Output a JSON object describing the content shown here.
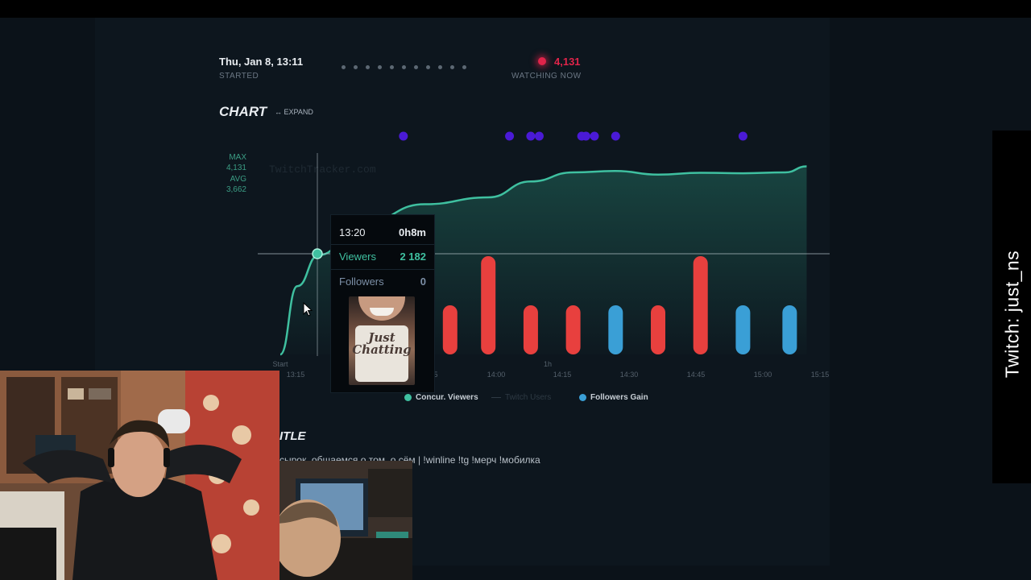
{
  "stream": {
    "started_value": "Thu, Jan 8, 13:11",
    "started_label": "STARTED",
    "watching_value": "4,131",
    "watching_label": "WATCHING NOW"
  },
  "chart_section": {
    "title": "CHART",
    "expand_label": "↔ EXPAND",
    "watermark": "TwitchTracker.com",
    "stats": {
      "max_label": "MAX",
      "max_value": "4,131",
      "avg_label": "AVG",
      "avg_value": "3,662"
    }
  },
  "tooltip": {
    "time": "13:20",
    "duration": "0h8m",
    "viewers_label": "Viewers",
    "viewers_value": "2 182",
    "followers_label": "Followers",
    "followers_value": "0",
    "thumbnail_text": "Just Chatting"
  },
  "legend": {
    "viewers": "Concur. Viewers",
    "twitch_users": "Twitch Users",
    "followers": "Followers Gain"
  },
  "title_section": {
    "heading": "ITLE",
    "text": "сырок, общаемся о том, о сём | !winline !tg !мерч !мобилка"
  },
  "side_banner": {
    "text": "Twitch: just_ns"
  },
  "colors": {
    "viewers": "#3fc0a0",
    "followers_positive": "#e8403e",
    "followers_other": "#3a9fd6",
    "live": "#e0244a",
    "marker": "#4a1ad6"
  },
  "chart_data": {
    "type": "line",
    "x_tick_labels": [
      "Start",
      "13:15",
      "5",
      "14:00",
      "1h",
      "14:15",
      "14:30",
      "14:45",
      "15:00",
      "15:15"
    ],
    "viewers": {
      "name": "Concur. Viewers",
      "points": [
        {
          "t": "13:11",
          "v": 0
        },
        {
          "t": "13:15",
          "v": 1500
        },
        {
          "t": "13:20",
          "v": 2182
        },
        {
          "t": "13:30",
          "v": 2850
        },
        {
          "t": "13:45",
          "v": 3300
        },
        {
          "t": "14:00",
          "v": 3450
        },
        {
          "t": "14:10",
          "v": 3800
        },
        {
          "t": "14:20",
          "v": 4000
        },
        {
          "t": "14:30",
          "v": 4030
        },
        {
          "t": "14:40",
          "v": 3950
        },
        {
          "t": "14:50",
          "v": 3990
        },
        {
          "t": "15:00",
          "v": 3980
        },
        {
          "t": "15:10",
          "v": 4000
        },
        {
          "t": "15:15",
          "v": 4131
        }
      ]
    },
    "followers_gain": {
      "name": "Followers Gain",
      "bars": [
        {
          "t": "13:51",
          "v": 1,
          "kind": "red"
        },
        {
          "t": "14:00",
          "v": 2,
          "kind": "red"
        },
        {
          "t": "14:10",
          "v": 1,
          "kind": "red"
        },
        {
          "t": "14:20",
          "v": 1,
          "kind": "red"
        },
        {
          "t": "14:30",
          "v": 1,
          "kind": "blue"
        },
        {
          "t": "14:40",
          "v": 1,
          "kind": "red"
        },
        {
          "t": "14:50",
          "v": 2,
          "kind": "red"
        },
        {
          "t": "15:00",
          "v": 1,
          "kind": "blue"
        },
        {
          "t": "15:11",
          "v": 1,
          "kind": "blue"
        }
      ]
    },
    "markers": [
      "13:40",
      "14:05",
      "14:10",
      "14:12",
      "14:22",
      "14:23",
      "14:25",
      "14:30",
      "15:00"
    ],
    "x_range": [
      "13:11",
      "15:17"
    ],
    "y_range": [
      0,
      4300
    ],
    "grid": false
  }
}
